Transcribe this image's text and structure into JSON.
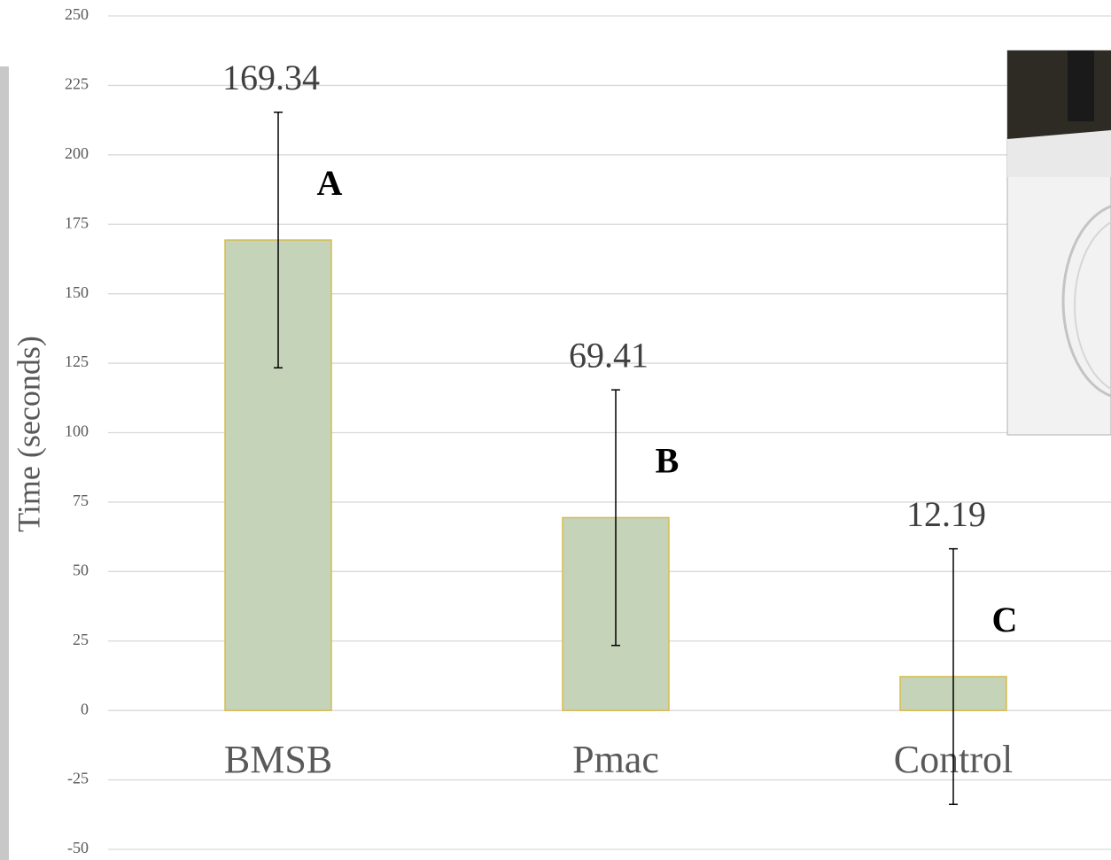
{
  "chart_data": {
    "type": "bar",
    "y_label": "Time (seconds)",
    "categories": [
      "BMSB",
      "Pmac",
      "Control"
    ],
    "values": [
      169.34,
      69.41,
      12.19
    ],
    "errors": [
      46,
      46,
      46
    ],
    "annotations": [
      "A",
      "B",
      "C"
    ],
    "color": "#c5d3b8",
    "edge_color": "#d6bc4e",
    "ylim": [
      -50,
      250
    ],
    "yticks": [
      -50,
      -25,
      0,
      25,
      50,
      75,
      100,
      125,
      150,
      175,
      200,
      225,
      250
    ],
    "grid": true
  }
}
